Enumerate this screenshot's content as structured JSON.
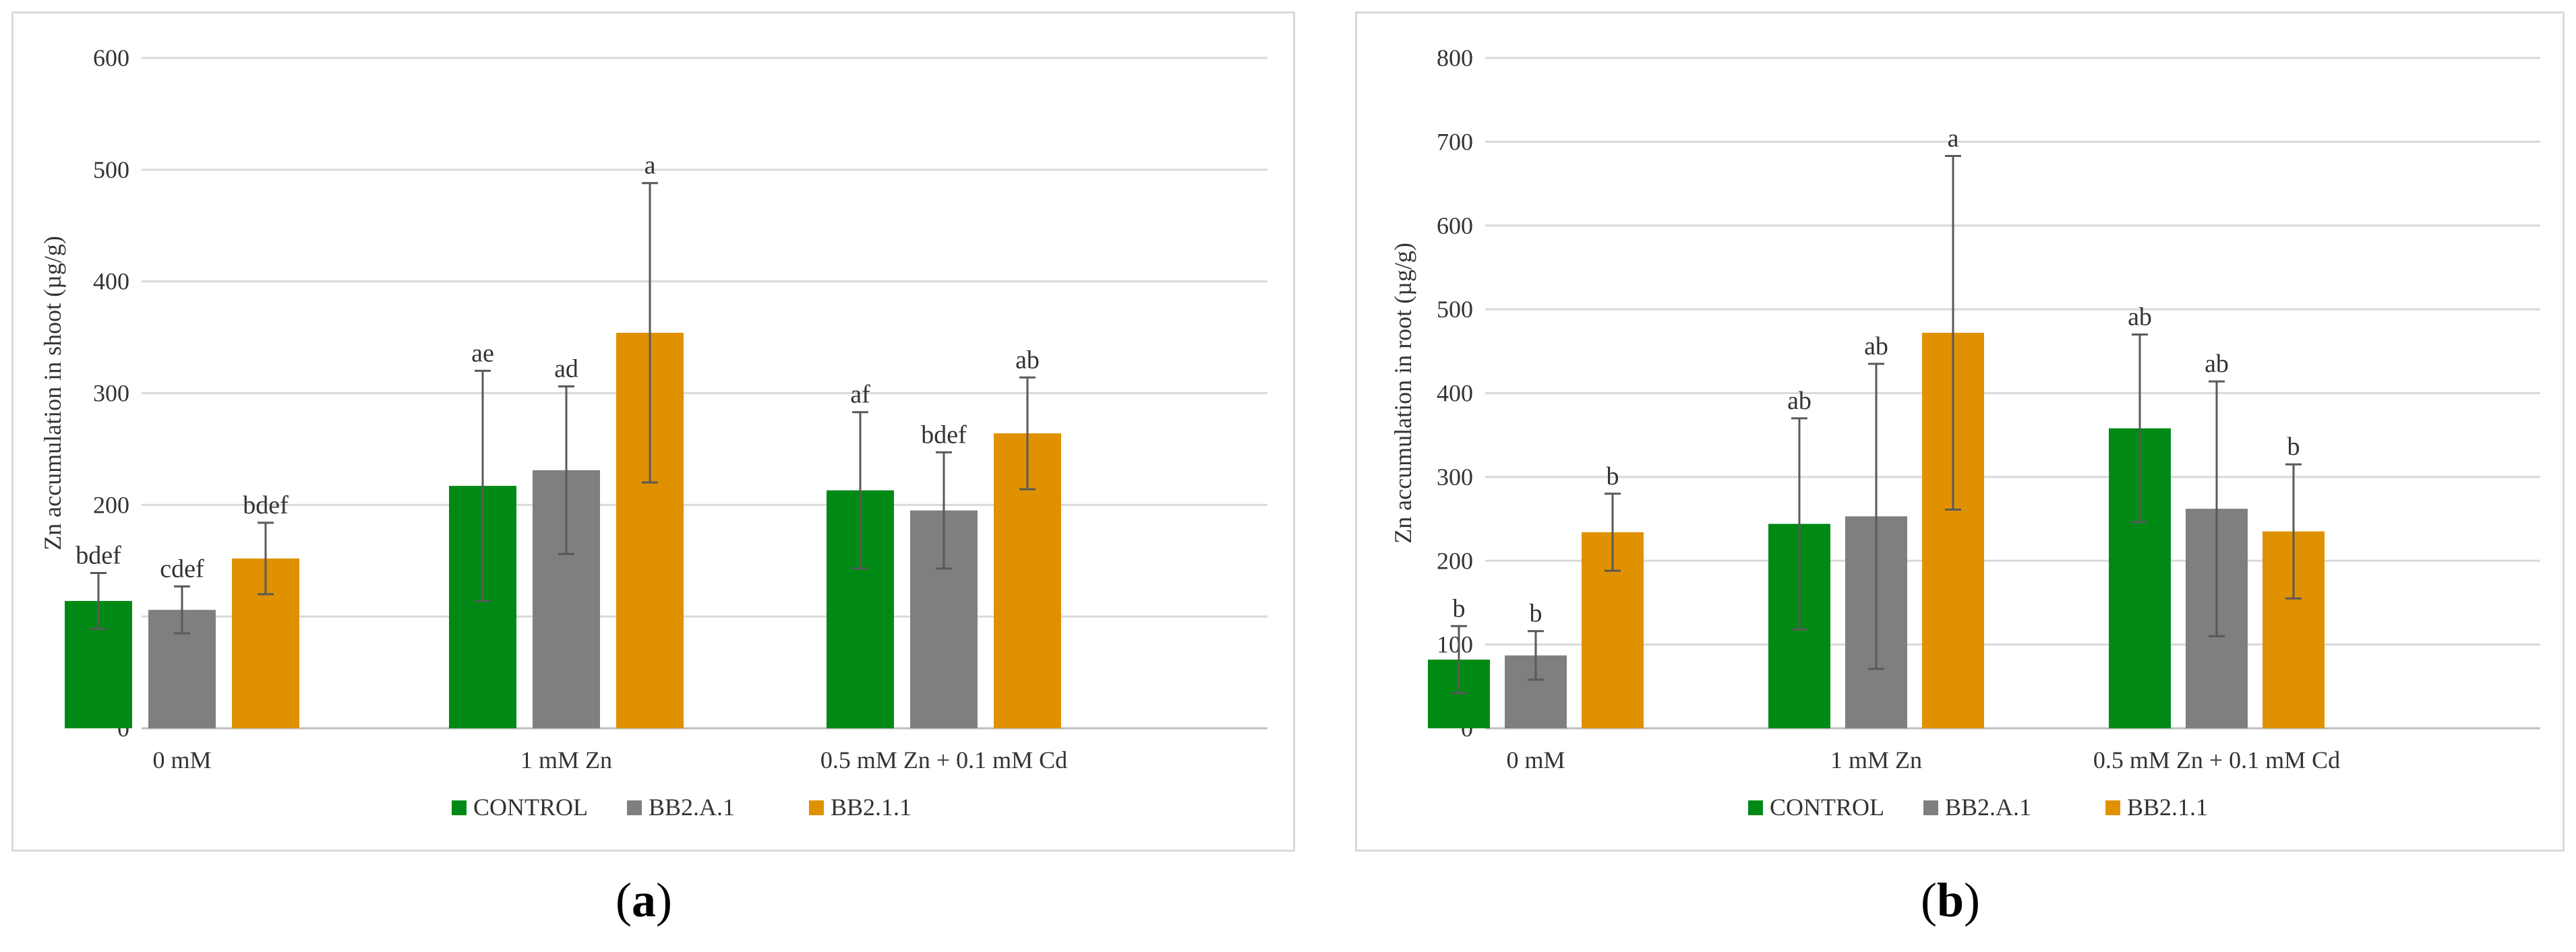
{
  "chart_data": [
    {
      "type": "bar",
      "panel_label": "a",
      "title": "",
      "xlabel": "",
      "ylabel": "Zn accumulation in shoot (µg/g)",
      "ylim": [
        0,
        600
      ],
      "yticks": [
        0,
        100,
        200,
        300,
        400,
        500,
        600
      ],
      "grid": true,
      "legend_position": "bottom",
      "categories": [
        "0 mM",
        "1 mM Zn",
        "0.5 mM Zn + 0.1 mM Cd"
      ],
      "series": [
        {
          "name": "CONTROL",
          "color": "#008a15",
          "values": [
            114,
            217,
            213
          ],
          "errors": [
            25,
            103,
            70
          ],
          "letters": [
            "bdef",
            "ae",
            "af"
          ]
        },
        {
          "name": "BB2.A.1",
          "color": "#7f7f7f",
          "values": [
            106,
            231,
            195
          ],
          "errors": [
            21,
            75,
            52
          ],
          "letters": [
            "cdef",
            "ad",
            "bdef"
          ]
        },
        {
          "name": "BB2.1.1",
          "color": "#e09100",
          "values": [
            152,
            354,
            264
          ],
          "errors": [
            32,
            134,
            50
          ],
          "letters": [
            "bdef",
            "a",
            "ab"
          ]
        }
      ]
    },
    {
      "type": "bar",
      "panel_label": "b",
      "title": "",
      "xlabel": "",
      "ylabel": "Zn accumulation in root (µg/g)",
      "ylim": [
        0,
        800
      ],
      "yticks": [
        0,
        100,
        200,
        300,
        400,
        500,
        600,
        700,
        800
      ],
      "grid": true,
      "legend_position": "bottom",
      "categories": [
        "0 mM",
        "1 mM Zn",
        "0.5 mM Zn + 0.1 mM Cd"
      ],
      "series": [
        {
          "name": "CONTROL",
          "color": "#008a15",
          "values": [
            82,
            244,
            358
          ],
          "errors": [
            40,
            126,
            112
          ],
          "letters": [
            "b",
            "ab",
            "ab"
          ]
        },
        {
          "name": "BB2.A.1",
          "color": "#7f7f7f",
          "values": [
            87,
            253,
            262
          ],
          "errors": [
            29,
            182,
            152
          ],
          "letters": [
            "b",
            "ab",
            "ab"
          ]
        },
        {
          "name": "BB2.1.1",
          "color": "#e09100",
          "values": [
            234,
            472,
            235
          ],
          "errors": [
            46,
            211,
            80
          ],
          "letters": [
            "b",
            "a",
            "b"
          ]
        }
      ]
    }
  ],
  "figure_labels": [
    "a",
    "b"
  ]
}
